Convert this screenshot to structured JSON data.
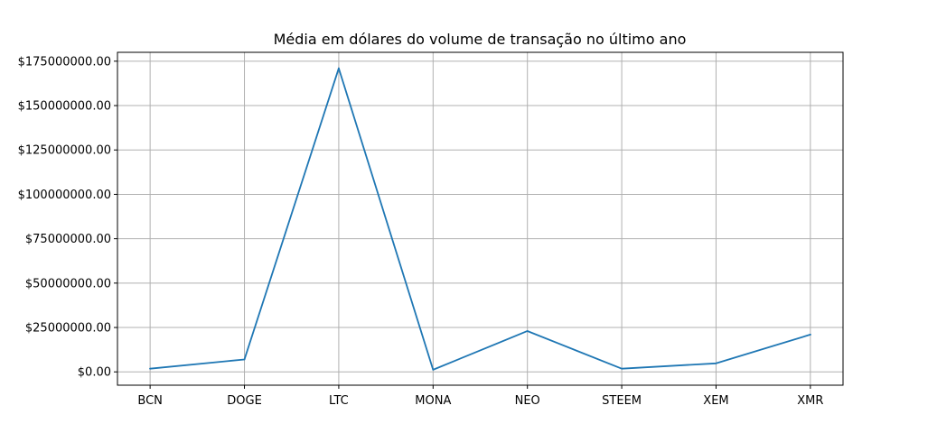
{
  "chart_data": {
    "type": "line",
    "title": "Média em dólares do volume de transação no último ano",
    "xlabel": "",
    "ylabel": "",
    "categories": [
      "BCN",
      "DOGE",
      "LTC",
      "MONA",
      "NEO",
      "STEEM",
      "XEM",
      "XMR"
    ],
    "series": [
      {
        "values": [
          1800000,
          7000000,
          171000000,
          1200000,
          23000000,
          1800000,
          4800000,
          21000000
        ],
        "color": "#1f77b4"
      }
    ],
    "ylim": [
      -7500000,
      180000000
    ],
    "yticks": [
      0,
      25000000,
      50000000,
      75000000,
      100000000,
      125000000,
      150000000,
      175000000
    ],
    "ytick_labels": [
      "$0.00",
      "$25000000.00",
      "$50000000.00",
      "$75000000.00",
      "$100000000.00",
      "$125000000.00",
      "$150000000.00",
      "$175000000.00"
    ],
    "grid": true,
    "legend": "none"
  }
}
